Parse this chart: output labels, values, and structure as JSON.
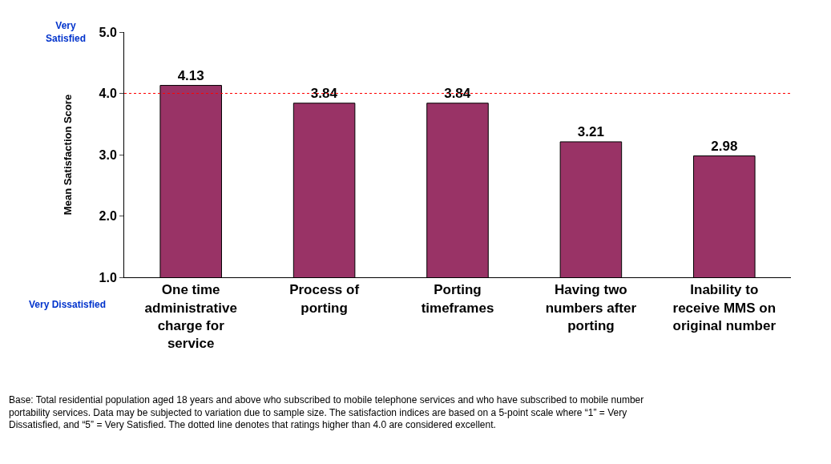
{
  "chart_data": {
    "type": "bar",
    "ylabel": "Mean Satisfaction Score",
    "categories": [
      "One time administrative charge for service",
      "Process of porting",
      "Porting timeframes",
      "Having two numbers after porting",
      "Inability to receive MMS on original number"
    ],
    "values": [
      4.13,
      3.84,
      3.84,
      3.21,
      2.98
    ],
    "color": "#993366",
    "data_labels": true,
    "ylim": [
      1,
      5
    ],
    "yticks": [
      {
        "value": 1,
        "label": "1.0"
      },
      {
        "value": 2,
        "label": "2.0"
      },
      {
        "value": 3,
        "label": "3.0"
      },
      {
        "value": 4,
        "label": "4.0"
      },
      {
        "value": 5,
        "label": "5.0"
      }
    ],
    "legend": false,
    "ref_lines": [
      {
        "axis": "y",
        "value": 4.0,
        "color": "#ff0000",
        "line_style": "dotted"
      }
    ],
    "annotations": [
      "Very Satisfied",
      "Very Dissatisfied",
      "Base: Total residential population aged 18 years and above who subscribed to mobile telephone services and who have subscribed to mobile number portability services. Data may be subjected to variation due to sample size. The satisfaction indices are based on a 5-point scale where “1” = Very Dissatisfied, and “5” = Very Satisfied. The dotted line denotes that ratings higher than 4.0 are considered excellent."
    ]
  }
}
